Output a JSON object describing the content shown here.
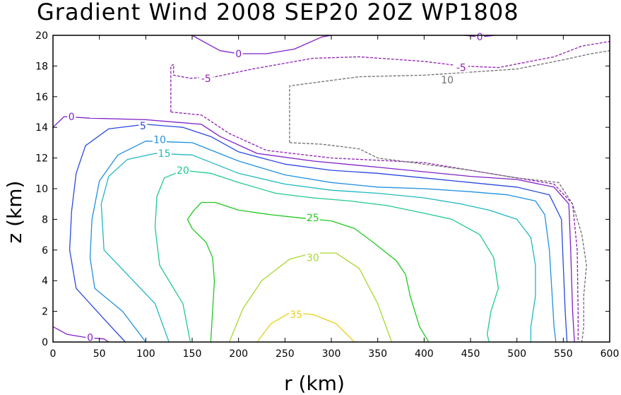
{
  "chart_data": {
    "type": "contour",
    "title": "Gradient Wind 2008 SEP20 20Z  WP1808",
    "xlabel": "r (km)",
    "ylabel": "z (km)",
    "xlim": [
      0,
      600
    ],
    "ylim": [
      0,
      20
    ],
    "xticks": [
      "0",
      "50",
      "100",
      "150",
      "200",
      "250",
      "300",
      "350",
      "400",
      "450",
      "500",
      "550",
      "600"
    ],
    "yticks": [
      "0",
      "2",
      "4",
      "6",
      "8",
      "10",
      "12",
      "14",
      "16",
      "18",
      "20"
    ],
    "contours": [
      {
        "level": "35",
        "color": "#e8d020",
        "dashed": false,
        "label_at": [
          262,
          1.8
        ],
        "points": [
          [
            220,
            0
          ],
          [
            235,
            1.2
          ],
          [
            255,
            1.9
          ],
          [
            280,
            1.8
          ],
          [
            305,
            1.2
          ],
          [
            325,
            0
          ]
        ]
      },
      {
        "level": "30",
        "color": "#a8d830",
        "dashed": false,
        "label_at": [
          280,
          5.5
        ],
        "points": [
          [
            190,
            0
          ],
          [
            205,
            2.2
          ],
          [
            225,
            4.0
          ],
          [
            255,
            5.4
          ],
          [
            280,
            5.8
          ],
          [
            305,
            5.8
          ],
          [
            330,
            4.8
          ],
          [
            350,
            2.5
          ],
          [
            365,
            0
          ]
        ]
      },
      {
        "level": "25",
        "color": "#20c820",
        "dashed": false,
        "label_at": [
          280,
          8.1
        ],
        "points": [
          [
            170,
            0
          ],
          [
            172,
            2
          ],
          [
            174,
            4
          ],
          [
            172,
            5.5
          ],
          [
            165,
            6.5
          ],
          [
            150,
            7.4
          ],
          [
            145,
            8
          ],
          [
            152,
            8.6
          ],
          [
            160,
            9.1
          ],
          [
            175,
            9.1
          ],
          [
            200,
            8.6
          ],
          [
            235,
            8.3
          ],
          [
            265,
            8.1
          ],
          [
            300,
            7.9
          ],
          [
            325,
            7.4
          ],
          [
            345,
            6.5
          ],
          [
            370,
            5.3
          ],
          [
            380,
            4.4
          ],
          [
            385,
            3.0
          ],
          [
            395,
            1.0
          ],
          [
            405,
            0
          ]
        ]
      },
      {
        "level": "20",
        "color": "#20c890",
        "dashed": false,
        "label_at": [
          140,
          11.2
        ],
        "points": [
          [
            148,
            0
          ],
          [
            140,
            2.5
          ],
          [
            115,
            5
          ],
          [
            110,
            7.5
          ],
          [
            112,
            9.5
          ],
          [
            120,
            10.7
          ],
          [
            140,
            11.2
          ],
          [
            170,
            11.0
          ],
          [
            200,
            10.4
          ],
          [
            240,
            9.7
          ],
          [
            280,
            9.4
          ],
          [
            320,
            9.2
          ],
          [
            360,
            8.9
          ],
          [
            400,
            8.4
          ],
          [
            430,
            8.0
          ],
          [
            460,
            7.0
          ],
          [
            475,
            5.5
          ],
          [
            480,
            3.5
          ],
          [
            472,
            2.0
          ],
          [
            468,
            0.5
          ],
          [
            470,
            0
          ]
        ]
      },
      {
        "level": "15",
        "color": "#20b8c0",
        "dashed": false,
        "label_at": [
          120,
          12.3
        ],
        "points": [
          [
            125,
            0
          ],
          [
            110,
            2.5
          ],
          [
            55,
            6
          ],
          [
            52,
            9
          ],
          [
            60,
            10.8
          ],
          [
            80,
            11.9
          ],
          [
            110,
            12.3
          ],
          [
            150,
            12.2
          ],
          [
            200,
            11.0
          ],
          [
            250,
            10.3
          ],
          [
            300,
            9.9
          ],
          [
            350,
            9.7
          ],
          [
            400,
            9.4
          ],
          [
            440,
            9.0
          ],
          [
            470,
            8.6
          ],
          [
            500,
            8.0
          ],
          [
            515,
            6.8
          ],
          [
            520,
            5.0
          ],
          [
            520,
            3.0
          ],
          [
            515,
            1.0
          ],
          [
            515,
            0
          ]
        ]
      },
      {
        "level": "10",
        "color": "#2090e0",
        "dashed": false,
        "label_at": [
          115,
          13.2
        ],
        "points": [
          [
            100,
            0
          ],
          [
            75,
            2.0
          ],
          [
            45,
            3.5
          ],
          [
            40,
            5.5
          ],
          [
            42,
            8
          ],
          [
            50,
            10.5
          ],
          [
            70,
            12.2
          ],
          [
            100,
            13.1
          ],
          [
            150,
            13.0
          ],
          [
            200,
            11.8
          ],
          [
            250,
            10.9
          ],
          [
            300,
            10.4
          ],
          [
            350,
            10.1
          ],
          [
            400,
            10.0
          ],
          [
            450,
            9.8
          ],
          [
            490,
            9.6
          ],
          [
            520,
            9.2
          ],
          [
            530,
            8.3
          ],
          [
            535,
            6.0
          ],
          [
            538,
            3.0
          ],
          [
            540,
            1.0
          ],
          [
            542,
            0
          ]
        ]
      },
      {
        "level": "5",
        "color": "#2848e0",
        "dashed": false,
        "label_at": [
          97,
          14.1
        ],
        "points": [
          [
            78,
            0
          ],
          [
            55,
            1.5
          ],
          [
            25,
            3.5
          ],
          [
            18,
            6
          ],
          [
            20,
            8.5
          ],
          [
            25,
            11
          ],
          [
            35,
            12.8
          ],
          [
            60,
            13.9
          ],
          [
            100,
            14.2
          ],
          [
            140,
            14.0
          ],
          [
            170,
            13.4
          ],
          [
            200,
            12.4
          ],
          [
            250,
            11.6
          ],
          [
            300,
            11.2
          ],
          [
            350,
            11.0
          ],
          [
            400,
            10.7
          ],
          [
            450,
            10.4
          ],
          [
            500,
            10.1
          ],
          [
            535,
            9.6
          ],
          [
            548,
            8.0
          ],
          [
            550,
            5.0
          ],
          [
            552,
            2.0
          ],
          [
            554,
            0
          ]
        ]
      },
      {
        "level": "0",
        "color": "#8020c8",
        "dashed": false,
        "label_at": [
          20,
          14.7
        ],
        "points": [
          [
            0,
            14
          ],
          [
            12,
            14.7
          ],
          [
            40,
            14.6
          ],
          [
            100,
            14.5
          ],
          [
            160,
            14.2
          ],
          [
            180,
            13.4
          ],
          [
            220,
            12.3
          ],
          [
            280,
            11.8
          ],
          [
            350,
            11.4
          ],
          [
            400,
            11.1
          ],
          [
            450,
            10.8
          ],
          [
            500,
            10.6
          ],
          [
            540,
            10.1
          ],
          [
            556,
            9.0
          ],
          [
            558,
            6.0
          ],
          [
            560,
            2.0
          ],
          [
            562,
            0
          ]
        ]
      },
      {
        "level": "0",
        "color": "#8020c8",
        "dashed": false,
        "label_at": [
          40,
          0.3
        ],
        "points": [
          [
            0,
            1.0
          ],
          [
            15,
            0.5
          ],
          [
            35,
            0.3
          ],
          [
            55,
            0.2
          ],
          [
            60,
            0
          ]
        ]
      },
      {
        "level": "0",
        "color": "#8020c8",
        "dashed": false,
        "label_at": [
          200,
          18.8
        ],
        "points": [
          [
            150,
            20
          ],
          [
            165,
            19.5
          ],
          [
            180,
            19.0
          ],
          [
            200,
            18.8
          ],
          [
            230,
            18.8
          ],
          [
            260,
            19.1
          ],
          [
            290,
            19.9
          ],
          [
            300,
            20
          ]
        ]
      },
      {
        "level": "0",
        "color": "#8020c8",
        "dashed": false,
        "label_at": [
          460,
          19.9
        ],
        "points": [
          [
            443,
            20
          ],
          [
            460,
            19.9
          ],
          [
            477,
            20
          ]
        ]
      },
      {
        "level": "-5",
        "color": "#9020b0",
        "dashed": true,
        "label_at": [
          165,
          17.2
        ],
        "points": [
          [
            127,
            15
          ],
          [
            127,
            18
          ],
          [
            130,
            18.1
          ],
          [
            130,
            17.4
          ],
          [
            148,
            17.2
          ],
          [
            175,
            17.3
          ],
          [
            215,
            17.8
          ],
          [
            280,
            18.5
          ],
          [
            330,
            18.6
          ],
          [
            400,
            18.3
          ],
          [
            440,
            18.0
          ],
          [
            480,
            17.9
          ],
          [
            540,
            18.6
          ],
          [
            570,
            19.3
          ],
          [
            600,
            19.6
          ]
        ]
      },
      {
        "level": "-5",
        "color": "#9020b0",
        "dashed": true,
        "label_at": [
          440,
          17.9
        ],
        "points": [
          [
            127,
            15
          ],
          [
            160,
            14.8
          ],
          [
            190,
            13.6
          ],
          [
            230,
            12.5
          ],
          [
            300,
            12.0
          ],
          [
            400,
            11.7
          ],
          [
            450,
            11.2
          ],
          [
            500,
            10.7
          ],
          [
            540,
            10.3
          ],
          [
            560,
            9.0
          ],
          [
            565,
            6.0
          ],
          [
            566,
            2.0
          ],
          [
            566,
            0
          ]
        ]
      },
      {
        "level": "10",
        "color": "#707070",
        "dashed": true,
        "label_at": [
          425,
          17.1
        ],
        "points": [
          [
            255,
            13
          ],
          [
            255,
            16.7
          ],
          [
            280,
            16.9
          ],
          [
            330,
            17.3
          ],
          [
            400,
            17.4
          ],
          [
            450,
            17.6
          ],
          [
            500,
            17.8
          ],
          [
            550,
            18.4
          ],
          [
            580,
            18.8
          ],
          [
            600,
            19.0
          ]
        ]
      },
      {
        "level": "10",
        "color": "#707070",
        "dashed": true,
        "label_at": [
          425,
          17.1
        ],
        "points": [
          [
            255,
            13
          ],
          [
            290,
            12.9
          ],
          [
            330,
            12.6
          ],
          [
            350,
            12.0
          ],
          [
            400,
            11.6
          ],
          [
            450,
            11.2
          ],
          [
            500,
            10.7
          ],
          [
            545,
            10.4
          ],
          [
            560,
            9.0
          ],
          [
            570,
            7.0
          ],
          [
            575,
            5.0
          ],
          [
            572,
            3.0
          ],
          [
            572,
            1.0
          ],
          [
            570,
            0
          ]
        ]
      }
    ]
  }
}
